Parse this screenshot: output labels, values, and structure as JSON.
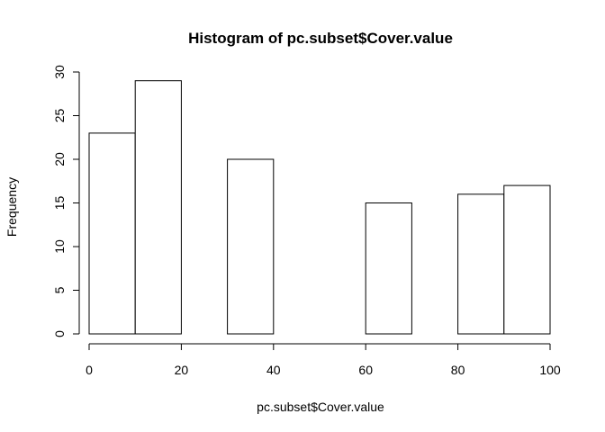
{
  "chart_data": {
    "type": "bar",
    "title": "Histogram of pc.subset$Cover.value",
    "xlabel": "pc.subset$Cover.value",
    "ylabel": "Frequency",
    "bins": [
      {
        "start": 0,
        "end": 10,
        "count": 23
      },
      {
        "start": 10,
        "end": 20,
        "count": 29
      },
      {
        "start": 20,
        "end": 30,
        "count": 0
      },
      {
        "start": 30,
        "end": 40,
        "count": 20
      },
      {
        "start": 40,
        "end": 50,
        "count": 0
      },
      {
        "start": 50,
        "end": 60,
        "count": 0
      },
      {
        "start": 60,
        "end": 70,
        "count": 15
      },
      {
        "start": 70,
        "end": 80,
        "count": 0
      },
      {
        "start": 80,
        "end": 90,
        "count": 16
      },
      {
        "start": 90,
        "end": 100,
        "count": 17
      }
    ],
    "xlim": [
      0,
      100
    ],
    "ylim": [
      0,
      30
    ],
    "xticks": [
      0,
      20,
      40,
      60,
      80,
      100
    ],
    "yticks": [
      0,
      5,
      10,
      15,
      20,
      25,
      30
    ],
    "grid": false,
    "colors": {
      "fill": "#ffffff",
      "stroke": "#000000"
    }
  }
}
